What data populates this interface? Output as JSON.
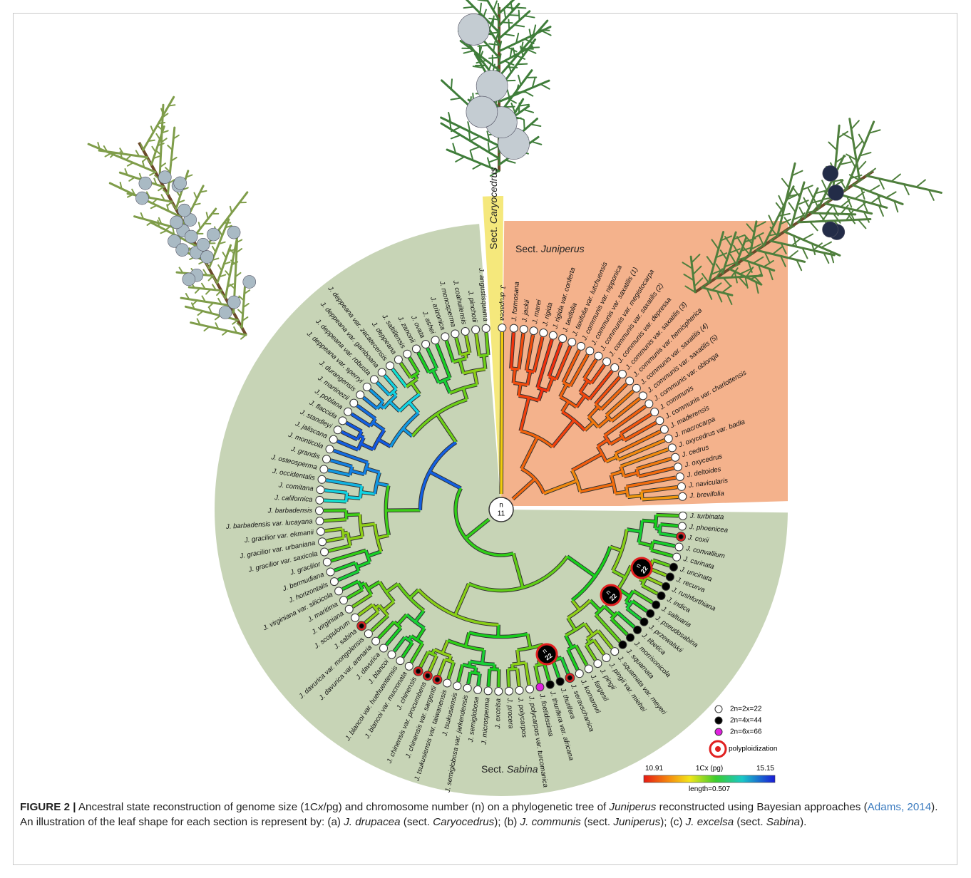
{
  "sections": {
    "caryocedrus": {
      "prefix": "Sect.",
      "name": "Caryocedrus",
      "tips": [
        {
          "name": "J. drupacea"
        }
      ]
    },
    "juniperus": {
      "prefix": "Sect.",
      "name": "Juniperus",
      "tips": [
        {
          "name": "J. formosana"
        },
        {
          "name": "J. jackii"
        },
        {
          "name": "J. marei"
        },
        {
          "name": "J. rigida"
        },
        {
          "name": "J. rigida var. conferta"
        },
        {
          "name": "J. taxifolia"
        },
        {
          "name": "J. taxifolia var. lutchuensis"
        },
        {
          "name": "J. communis var. nipponica"
        },
        {
          "name": "J. communis var. saxatilis (1)"
        },
        {
          "name": "J. communis var. megistocarpa"
        },
        {
          "name": "J. communis var. saxatilis (2)"
        },
        {
          "name": "J. communis var. depressa"
        },
        {
          "name": "J. communis var. saxatilis (3)"
        },
        {
          "name": "J. communis var. hemispherica"
        },
        {
          "name": "J. communis var. saxatilis (4)"
        },
        {
          "name": "J. communis var. saxatilis (5)"
        },
        {
          "name": "J. communis var. oblonga"
        },
        {
          "name": "J. communis"
        },
        {
          "name": "J. communis var. charlottensis"
        },
        {
          "name": "J. maderensis"
        },
        {
          "name": "J. macrocarpa"
        },
        {
          "name": "J. oxycedrus var. badia"
        },
        {
          "name": "J. cedrus"
        },
        {
          "name": "J. oxycedrus"
        },
        {
          "name": "J. deltoides"
        },
        {
          "name": "J. navicularis"
        },
        {
          "name": "J. brevifolia"
        }
      ]
    },
    "sabina": {
      "prefix": "Sect.",
      "name": "Sabina",
      "tips": [
        {
          "name": "J. turbinata"
        },
        {
          "name": "J. phoenicea"
        },
        {
          "name": "J. coxii",
          "fill": "#000000",
          "ring": true
        },
        {
          "name": "J. convallium"
        },
        {
          "name": "J. carinata"
        },
        {
          "name": "J. uncinata",
          "fill": "#000000"
        },
        {
          "name": "J. recurva",
          "fill": "#000000"
        },
        {
          "name": "J. rushforthiana",
          "fill": "#000000"
        },
        {
          "name": "J. indica",
          "fill": "#000000"
        },
        {
          "name": "J. saltuaria",
          "fill": "#000000"
        },
        {
          "name": "J. pseudosabina",
          "fill": "#000000"
        },
        {
          "name": "J. przewalskii",
          "fill": "#000000"
        },
        {
          "name": "J. tibetica",
          "fill": "#000000"
        },
        {
          "name": "J. morrisonicola",
          "fill": "#000000"
        },
        {
          "name": "J. squamata",
          "fill": "#000000"
        },
        {
          "name": "J. squamata var. meyeri"
        },
        {
          "name": "J. pingii var. miehei"
        },
        {
          "name": "J. pingii"
        },
        {
          "name": "J. fargesii"
        },
        {
          "name": "J. komarovii"
        },
        {
          "name": "J. seravschanica",
          "fill": "#000000",
          "ring": true
        },
        {
          "name": "J. thurifera",
          "fill": "#000000"
        },
        {
          "name": "J. thurifera var. africana",
          "fill": "#000000"
        },
        {
          "name": "J. foetidissima",
          "fill": "#e020e0"
        },
        {
          "name": "J. polycarpos var. turcomanica"
        },
        {
          "name": "J. polycarpos"
        },
        {
          "name": "J. procera"
        },
        {
          "name": "J. excelsa"
        },
        {
          "name": "J. microsperma"
        },
        {
          "name": "J. semiglobosa"
        },
        {
          "name": "J. semiglobosa var. jarkendensis"
        },
        {
          "name": "J. tsukusiensis"
        },
        {
          "name": "J. tsukusiensis var. taiwanensis"
        },
        {
          "name": "J. chinensis var. sargentii",
          "fill": "#000000",
          "ring": true
        },
        {
          "name": "J. chinensis var. procumbens",
          "fill": "#000000",
          "ring": true
        },
        {
          "name": "J. chinensis",
          "fill": "#000000",
          "ring": true
        },
        {
          "name": "J. blancoi var. mucronata"
        },
        {
          "name": "J. blancoi var. huehuentensis"
        },
        {
          "name": "J. blancoi"
        },
        {
          "name": "J. davurica"
        },
        {
          "name": "J. davurica var. arenaria"
        },
        {
          "name": "J. davurica var. mongolensis"
        },
        {
          "name": "J. sabina",
          "fill": "#000000",
          "ring": true
        },
        {
          "name": "J. scopulorum"
        },
        {
          "name": "J. virginiana"
        },
        {
          "name": "J. maritima"
        },
        {
          "name": "J. virginiana var. silicicola"
        },
        {
          "name": "J. horizontalis"
        },
        {
          "name": "J. bermudiana"
        },
        {
          "name": "J. gracilior"
        },
        {
          "name": "J. gracilior var. saxicola"
        },
        {
          "name": "J. gracilior var. urbaniana"
        },
        {
          "name": "J. gracilior var. ekmanii"
        },
        {
          "name": "J. barbadensis var. lucayana"
        },
        {
          "name": "J. barbadensis"
        },
        {
          "name": "J. californica"
        },
        {
          "name": "J. comitana"
        },
        {
          "name": "J. occidentalis"
        },
        {
          "name": "J. osteosperma"
        },
        {
          "name": "J. grandis"
        },
        {
          "name": "J. monticola"
        },
        {
          "name": "J. jaliscana"
        },
        {
          "name": "J. standleyi"
        },
        {
          "name": "J. flaccida"
        },
        {
          "name": "J. poblana"
        },
        {
          "name": "J. martinezii"
        },
        {
          "name": "J. durangensis"
        },
        {
          "name": "J. deppeana var. sperryi"
        },
        {
          "name": "J. deppeana var. robusta"
        },
        {
          "name": "J. deppeana var. gamboana"
        },
        {
          "name": "J. deppeana var. zacatecensis"
        },
        {
          "name": "J. deppeana"
        },
        {
          "name": "J. saltillensis"
        },
        {
          "name": "J. zanonii"
        },
        {
          "name": "J. ovata"
        },
        {
          "name": "J. ashei"
        },
        {
          "name": "J. arizonica"
        },
        {
          "name": "J. monosperma"
        },
        {
          "name": "J. coahuilensis"
        },
        {
          "name": "J. pinchotii"
        },
        {
          "name": "J. angustisquama"
        }
      ]
    }
  },
  "root": {
    "n": "n",
    "count": 11
  },
  "polyploidization_nodes": [
    {
      "n": "n",
      "count": 22
    },
    {
      "n": "n",
      "count": 22
    },
    {
      "n": "n",
      "count": 22
    }
  ],
  "legend": [
    {
      "label": "2n=2x=22",
      "fill": "#ffffff"
    },
    {
      "label": "2n=4x=44",
      "fill": "#000000"
    },
    {
      "label": "2n=6x=66",
      "fill": "#e020e0"
    },
    {
      "label": "polyploidization",
      "ring": true
    }
  ],
  "scale": {
    "min": "10.91",
    "title": "1Cx (pg)",
    "max": "15.15",
    "length": "length=0.507"
  },
  "caption": {
    "label": "FIGURE 2 |",
    "parts": [
      {
        "text": " Ancestral state reconstruction of genome size (1C"
      },
      {
        "text": "x",
        "italic": true
      },
      {
        "text": "/pg) and chromosome number (n) on a phylogenetic tree of "
      },
      {
        "text": "Juniperus",
        "italic": true
      },
      {
        "text": " reconstructed using Bayesian approaches ("
      },
      {
        "text": "Adams, 2014",
        "link": true
      },
      {
        "text": "). An illustration of the leaf shape for each section is represent by: (a) "
      },
      {
        "text": "J. drupacea",
        "italic": true
      },
      {
        "text": " (sect. "
      },
      {
        "text": "Caryocedrus",
        "italic": true
      },
      {
        "text": "); (b) "
      },
      {
        "text": "J. communis",
        "italic": true
      },
      {
        "text": " (sect. "
      },
      {
        "text": "Juniperus",
        "italic": true
      },
      {
        "text": "); (c) "
      },
      {
        "text": "J. excelsa",
        "italic": true
      },
      {
        "text": " (sect. "
      },
      {
        "text": "Sabina",
        "italic": true
      },
      {
        "text": ")."
      }
    ]
  }
}
